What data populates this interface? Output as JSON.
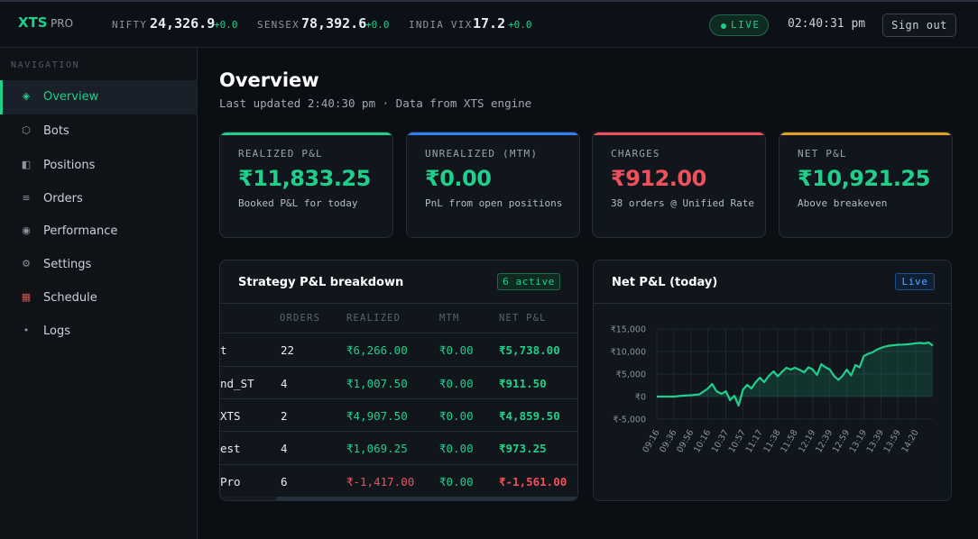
{
  "header": {
    "brand": "XTS",
    "brand_sub": "PRO",
    "indices": [
      {
        "label": "NIFTY",
        "value": "24,326.9",
        "change": "+0.0"
      },
      {
        "label": "SENSEX",
        "value": "78,392.6",
        "change": "+0.0"
      },
      {
        "label": "INDIA VIX",
        "value": "17.2",
        "change": "+0.0"
      }
    ],
    "live_label": "LIVE",
    "clock": "02:40:31 pm",
    "signout_label": "Sign out"
  },
  "sidebar": {
    "heading": "NAVIGATION",
    "items": [
      {
        "label": "Overview",
        "icon": "diamond-icon",
        "glyph": "◈",
        "active": true
      },
      {
        "label": "Bots",
        "icon": "hexagon-icon",
        "glyph": "⬡",
        "active": false
      },
      {
        "label": "Positions",
        "icon": "half-square-icon",
        "glyph": "◧",
        "active": false
      },
      {
        "label": "Orders",
        "icon": "list-icon",
        "glyph": "≡",
        "active": false
      },
      {
        "label": "Performance",
        "icon": "target-icon",
        "glyph": "◉",
        "active": false
      },
      {
        "label": "Settings",
        "icon": "gear-icon",
        "glyph": "⚙",
        "active": false
      },
      {
        "label": "Schedule",
        "icon": "calendar-icon",
        "glyph": "▦",
        "active": false
      },
      {
        "label": "Logs",
        "icon": "dot-icon",
        "glyph": "•",
        "active": false
      }
    ]
  },
  "main": {
    "title": "Overview",
    "subtitle": "Last updated 2:40:30 pm · Data from XTS engine",
    "kpis": [
      {
        "label": "REALIZED P&L",
        "value": "₹11,833.25",
        "desc": "Booked P&L for today",
        "accent": "#1fcf8a",
        "value_color": "#1fcf8a"
      },
      {
        "label": "UNREALIZED (MTM)",
        "value": "₹0.00",
        "desc": "PnL from open positions",
        "accent": "#2f81f7",
        "value_color": "#1fcf8a"
      },
      {
        "label": "CHARGES",
        "value": "₹912.00",
        "desc": "38 orders @ Unified Rate",
        "accent": "#f0505a",
        "value_color": "#f0505a"
      },
      {
        "label": "NET P&L",
        "value": "₹10,921.25",
        "desc": "Above breakeven",
        "accent": "#e0a020",
        "value_color": "#1fcf8a"
      }
    ],
    "strategy": {
      "title": "Strategy P&L breakdown",
      "badge": "6 active",
      "columns": [
        "",
        "ORDERS",
        "REALIZED",
        "MTM",
        "NET P&L"
      ],
      "rows": [
        {
          "name": "t",
          "orders": "22",
          "realized": "₹6,266.00",
          "mtm": "₹0.00",
          "net": "₹5,738.00",
          "positive": true
        },
        {
          "name": "nd_ST",
          "orders": "4",
          "realized": "₹1,007.50",
          "mtm": "₹0.00",
          "net": "₹911.50",
          "positive": true
        },
        {
          "name": "XTS",
          "orders": "2",
          "realized": "₹4,907.50",
          "mtm": "₹0.00",
          "net": "₹4,859.50",
          "positive": true
        },
        {
          "name": "est",
          "orders": "4",
          "realized": "₹1,069.25",
          "mtm": "₹0.00",
          "net": "₹973.25",
          "positive": true
        },
        {
          "name": "Pro",
          "orders": "6",
          "realized": "₹-1,417.00",
          "mtm": "₹0.00",
          "net": "₹-1,561.00",
          "positive": false
        }
      ]
    },
    "netpnl": {
      "title": "Net P&L (today)",
      "badge": "Live"
    }
  },
  "colors": {
    "accent": "#1fcf8a",
    "negative": "#f0505a",
    "info": "#2f81f7",
    "warning": "#e0a020"
  },
  "chart_data": {
    "type": "area",
    "title": "Net P&L (today)",
    "ylim": [
      -5000,
      15000
    ],
    "yticks": [
      -5000,
      0,
      5000,
      10000,
      15000
    ],
    "ytick_labels": [
      "₹-5,000",
      "₹0",
      "₹5,000",
      "₹10,000",
      "₹15,000"
    ],
    "xtick_labels": [
      "09:16",
      "09:36",
      "09:56",
      "10:16",
      "10:37",
      "10:57",
      "11:17",
      "11:38",
      "11:58",
      "12:19",
      "12:39",
      "12:59",
      "13:19",
      "13:39",
      "13:59",
      "14:20"
    ],
    "x_start": "09:16",
    "x_end": "14:40",
    "series": [
      {
        "color": "#1fcf8a",
        "points": [
          [
            "09:16",
            0
          ],
          [
            "09:26",
            0
          ],
          [
            "09:36",
            0
          ],
          [
            "09:46",
            200
          ],
          [
            "09:56",
            300
          ],
          [
            "10:06",
            500
          ],
          [
            "10:16",
            1800
          ],
          [
            "10:21",
            2800
          ],
          [
            "10:26",
            1200
          ],
          [
            "10:32",
            600
          ],
          [
            "10:37",
            1200
          ],
          [
            "10:42",
            -800
          ],
          [
            "10:47",
            200
          ],
          [
            "10:52",
            -2000
          ],
          [
            "10:57",
            1500
          ],
          [
            "11:02",
            2600
          ],
          [
            "11:07",
            1800
          ],
          [
            "11:12",
            3200
          ],
          [
            "11:17",
            4200
          ],
          [
            "11:22",
            3200
          ],
          [
            "11:27",
            4500
          ],
          [
            "11:33",
            5600
          ],
          [
            "11:38",
            4500
          ],
          [
            "11:43",
            5500
          ],
          [
            "11:48",
            6400
          ],
          [
            "11:53",
            6000
          ],
          [
            "11:58",
            6400
          ],
          [
            "12:04",
            5900
          ],
          [
            "12:09",
            5400
          ],
          [
            "12:14",
            6500
          ],
          [
            "12:19",
            6000
          ],
          [
            "12:24",
            4800
          ],
          [
            "12:29",
            7200
          ],
          [
            "12:34",
            6500
          ],
          [
            "12:39",
            6000
          ],
          [
            "12:44",
            4600
          ],
          [
            "12:49",
            3700
          ],
          [
            "12:54",
            4600
          ],
          [
            "12:59",
            6000
          ],
          [
            "13:04",
            4700
          ],
          [
            "13:09",
            7000
          ],
          [
            "13:14",
            6500
          ],
          [
            "13:19",
            9000
          ],
          [
            "13:24",
            9500
          ],
          [
            "13:29",
            9800
          ],
          [
            "13:34",
            10400
          ],
          [
            "13:39",
            10800
          ],
          [
            "13:44",
            11100
          ],
          [
            "13:49",
            11300
          ],
          [
            "13:54",
            11400
          ],
          [
            "13:59",
            11500
          ],
          [
            "14:05",
            11550
          ],
          [
            "14:10",
            11600
          ],
          [
            "14:15",
            11700
          ],
          [
            "14:20",
            11850
          ],
          [
            "14:25",
            11900
          ],
          [
            "14:30",
            11800
          ],
          [
            "14:35",
            12000
          ],
          [
            "14:40",
            11300
          ]
        ]
      }
    ],
    "grid": true
  }
}
